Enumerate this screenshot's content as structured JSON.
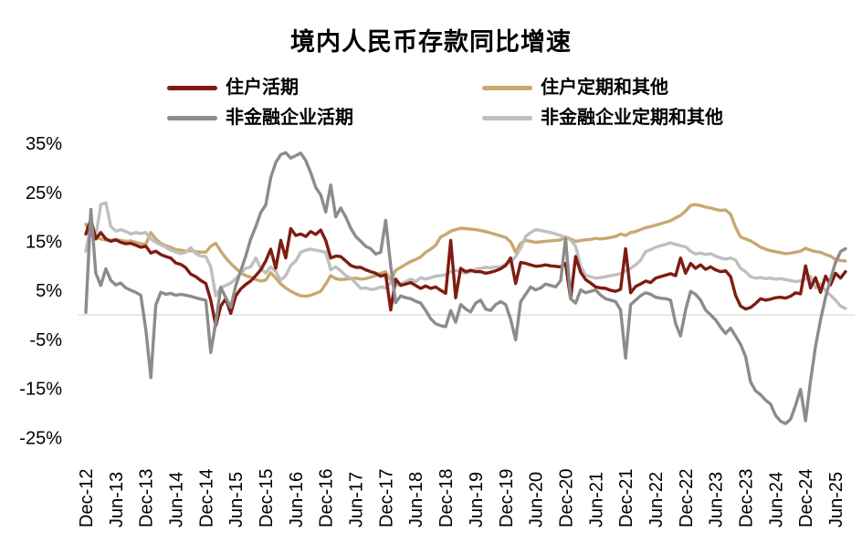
{
  "title": "境内人民币存款同比增速",
  "chart_data": {
    "type": "line",
    "title": "境内人民币存款同比增速",
    "frequency": "monthly",
    "x_start": "Dec-12",
    "x_end": "Aug-25",
    "unit": "%",
    "grid": "zero-line-only",
    "zero_line_color": "#D9D9D9",
    "legend_position": "top",
    "x_tick_labels": [
      "Dec-12",
      "Jun-13",
      "Dec-13",
      "Jun-14",
      "Dec-14",
      "Jun-15",
      "Dec-15",
      "Jun-16",
      "Dec-16",
      "Jun-17",
      "Dec-17",
      "Jun-18",
      "Dec-18",
      "Jun-19",
      "Dec-19",
      "Jun-20",
      "Dec-20",
      "Jun-21",
      "Dec-21",
      "Jun-22",
      "Dec-22",
      "Jun-23",
      "Dec-23",
      "Jun-24",
      "Dec-24",
      "Jun-25"
    ],
    "y_tick_labels": [
      "35%",
      "25%",
      "15%",
      "5%",
      "-5%",
      "-15%",
      "-25%"
    ],
    "y_tick_values": [
      35,
      25,
      15,
      5,
      -5,
      -15,
      -25
    ],
    "ylim": [
      -27,
      36
    ],
    "draw_order": [
      1,
      3,
      0,
      2
    ],
    "series": [
      {
        "name": "住户活期",
        "color": "#7E1C12",
        "values": [
          16.5,
          19.5,
          15.5,
          16.8,
          15.5,
          15.0,
          15.3,
          14.8,
          14.5,
          14.6,
          14.2,
          13.8,
          14.0,
          12.6,
          13.0,
          12.3,
          11.9,
          11.6,
          10.6,
          10.3,
          9.6,
          8.3,
          7.8,
          7.0,
          6.4,
          3.0,
          -2.2,
          1.8,
          3.3,
          0.3,
          3.9,
          5.3,
          6.2,
          6.9,
          8.0,
          9.2,
          11.0,
          13.4,
          9.5,
          15.2,
          11.6,
          17.6,
          16.2,
          16.5,
          16.0,
          17.0,
          16.4,
          17.3,
          15.2,
          11.6,
          12.0,
          11.9,
          11.0,
          10.1,
          9.7,
          9.7,
          9.2,
          8.8,
          8.5,
          7.9,
          8.2,
          1.0,
          7.3,
          6.0,
          6.3,
          6.6,
          6.0,
          5.4,
          5.9,
          5.4,
          5.7,
          5.0,
          4.4,
          15.2,
          3.5,
          9.5,
          8.8,
          9.1,
          8.8,
          8.8,
          8.5,
          8.7,
          9.0,
          9.4,
          10.1,
          11.6,
          6.4,
          10.7,
          10.5,
          10.2,
          9.9,
          10.0,
          10.2,
          10.0,
          9.9,
          9.8,
          10.5,
          3.3,
          11.9,
          8.7,
          7.2,
          6.5,
          5.7,
          5.5,
          5.4,
          5.0,
          4.8,
          5.2,
          13.5,
          4.5,
          5.8,
          6.3,
          6.9,
          6.6,
          7.5,
          7.8,
          8.1,
          8.4,
          8.0,
          11.6,
          8.5,
          10.5,
          9.5,
          10.2,
          9.3,
          9.8,
          9.2,
          8.8,
          9.0,
          7.8,
          4.0,
          1.8,
          1.2,
          1.5,
          2.3,
          3.3,
          3.0,
          3.2,
          3.5,
          3.6,
          3.4,
          3.8,
          4.5,
          4.3,
          10.0,
          5.5,
          7.6,
          4.6,
          7.9,
          6.1,
          8.5,
          7.5,
          8.8
        ]
      },
      {
        "name": "住户定期和其他",
        "color": "#C8A872",
        "values": [
          18.5,
          16.3,
          15.8,
          15.5,
          15.3,
          15.2,
          15.4,
          15.2,
          15.0,
          15.1,
          14.8,
          14.5,
          14.4,
          16.8,
          15.5,
          14.6,
          14.1,
          13.8,
          13.3,
          13.2,
          13.0,
          13.1,
          12.9,
          12.8,
          12.8,
          14.0,
          14.6,
          13.0,
          11.6,
          10.5,
          9.5,
          8.6,
          8.0,
          7.7,
          7.2,
          6.9,
          7.1,
          8.6,
          7.5,
          6.3,
          5.5,
          4.8,
          4.3,
          3.9,
          3.8,
          4.0,
          4.4,
          4.8,
          6.3,
          8.0,
          7.4,
          7.2,
          7.3,
          7.4,
          7.5,
          7.3,
          7.4,
          7.7,
          8.0,
          8.5,
          8.8,
          7.0,
          9.1,
          9.7,
          10.3,
          10.9,
          11.3,
          11.8,
          12.8,
          13.4,
          14.2,
          15.9,
          16.4,
          17.1,
          17.4,
          17.7,
          17.6,
          17.5,
          17.4,
          17.2,
          17.0,
          16.7,
          16.4,
          16.1,
          15.8,
          14.9,
          12.8,
          14.6,
          15.2,
          15.0,
          14.8,
          14.9,
          15.0,
          15.1,
          15.2,
          15.3,
          15.9,
          15.5,
          15.0,
          15.2,
          15.3,
          15.4,
          15.6,
          15.5,
          15.6,
          15.8,
          16.0,
          16.5,
          16.2,
          16.8,
          17.0,
          17.4,
          17.8,
          18.0,
          18.3,
          18.6,
          18.9,
          19.2,
          19.8,
          20.3,
          21.2,
          22.3,
          22.5,
          22.3,
          22.0,
          21.8,
          21.5,
          21.3,
          21.4,
          20.5,
          17.9,
          15.9,
          15.5,
          15.1,
          14.5,
          13.8,
          13.4,
          13.1,
          12.9,
          12.7,
          12.5,
          12.6,
          12.8,
          13.0,
          13.6,
          13.2,
          12.9,
          12.8,
          12.3,
          12.0,
          11.3,
          11.1,
          11.0
        ]
      },
      {
        "name": "非金融企业活期",
        "color": "#8C8C8C",
        "values": [
          0.5,
          21.5,
          8.5,
          6.0,
          9.4,
          7.0,
          6.1,
          6.5,
          5.5,
          5.0,
          4.6,
          4.0,
          -3.0,
          -12.8,
          2.0,
          4.6,
          4.2,
          4.4,
          4.0,
          4.2,
          4.0,
          3.8,
          3.5,
          3.2,
          3.0,
          -7.7,
          -1.5,
          5.6,
          3.5,
          1.5,
          6.0,
          9.0,
          12.0,
          15.5,
          18.0,
          20.9,
          22.4,
          28.0,
          31.1,
          32.7,
          33.1,
          32.0,
          32.5,
          33.0,
          31.5,
          29.0,
          26.0,
          24.5,
          21.0,
          26.5,
          20.0,
          21.8,
          20.0,
          17.7,
          16.0,
          15.0,
          14.0,
          13.5,
          12.4,
          12.8,
          19.3,
          10.0,
          2.5,
          3.9,
          3.5,
          3.3,
          2.8,
          2.4,
          0.9,
          -0.8,
          -1.8,
          -2.2,
          -2.4,
          0.9,
          -1.5,
          2.1,
          1.2,
          0.6,
          2.4,
          3.0,
          1.2,
          0.9,
          2.1,
          2.7,
          2.1,
          -0.9,
          -5.1,
          2.7,
          4.2,
          5.7,
          5.1,
          5.5,
          6.3,
          6.0,
          5.7,
          7.0,
          15.6,
          3.3,
          2.4,
          5.1,
          4.5,
          4.8,
          5.1,
          4.0,
          3.3,
          3.0,
          2.7,
          1.0,
          -8.8,
          2.1,
          3.0,
          3.9,
          4.5,
          4.2,
          3.6,
          3.4,
          3.3,
          3.0,
          -1.8,
          -4.3,
          1.0,
          4.8,
          4.2,
          3.0,
          1.0,
          0.0,
          -1.0,
          -2.5,
          -3.8,
          -2.7,
          -4.3,
          -6.0,
          -8.5,
          -13.7,
          -15.5,
          -16.3,
          -17.4,
          -18.2,
          -20.5,
          -21.7,
          -22.2,
          -21.3,
          -18.5,
          -15.2,
          -21.6,
          -13.5,
          -6.4,
          -1.0,
          3.6,
          7.3,
          10.7,
          12.9,
          13.5
        ]
      },
      {
        "name": "非金融企业定期和其他",
        "color": "#BFBFBF",
        "values": [
          13.0,
          18.3,
          15.9,
          22.5,
          22.9,
          18.0,
          17.1,
          17.4,
          17.0,
          16.5,
          16.8,
          16.6,
          16.8,
          15.5,
          14.8,
          14.3,
          13.8,
          13.2,
          12.8,
          12.5,
          12.8,
          13.7,
          12.5,
          12.0,
          11.9,
          9.8,
          3.9,
          5.6,
          6.0,
          6.5,
          7.4,
          8.5,
          9.5,
          9.8,
          11.6,
          9.5,
          8.5,
          9.8,
          8.8,
          7.1,
          8.0,
          10.1,
          11.0,
          12.8,
          13.2,
          13.4,
          13.2,
          13.0,
          12.8,
          9.2,
          9.8,
          9.0,
          8.0,
          7.5,
          6.5,
          5.4,
          5.5,
          5.2,
          5.3,
          5.7,
          5.5,
          6.6,
          6.0,
          6.3,
          6.8,
          7.3,
          6.8,
          7.6,
          7.3,
          7.6,
          7.9,
          8.0,
          8.2,
          8.8,
          9.1,
          8.8,
          8.5,
          8.8,
          9.3,
          9.5,
          9.7,
          9.6,
          9.8,
          9.8,
          10.4,
          10.7,
          11.9,
          13.6,
          16.0,
          16.8,
          17.4,
          17.2,
          17.0,
          16.8,
          16.5,
          16.2,
          15.8,
          15.3,
          14.0,
          9.9,
          8.1,
          7.8,
          7.5,
          7.6,
          7.8,
          8.0,
          8.2,
          8.4,
          9.0,
          9.5,
          10.2,
          11.1,
          12.9,
          13.3,
          13.8,
          14.1,
          14.4,
          14.7,
          14.4,
          14.1,
          13.9,
          13.0,
          12.4,
          12.6,
          12.3,
          12.5,
          12.0,
          11.6,
          11.4,
          11.6,
          11.2,
          9.5,
          8.8,
          7.8,
          7.5,
          7.6,
          7.4,
          7.5,
          7.3,
          7.4,
          7.2,
          7.0,
          6.8,
          6.9,
          7.3,
          7.9,
          5.5,
          6.3,
          4.9,
          4.0,
          3.0,
          1.8,
          1.3
        ]
      }
    ]
  }
}
